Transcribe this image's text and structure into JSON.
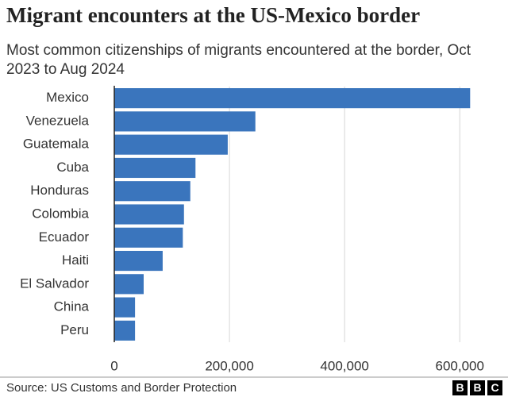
{
  "chart_data": {
    "type": "bar",
    "orientation": "horizontal",
    "title": "Migrant encounters at the US-Mexico border",
    "subtitle": "Most common citizenships of migrants encountered at the border, Oct 2023 to Aug 2024",
    "categories": [
      "Mexico",
      "Venezuela",
      "Guatemala",
      "Cuba",
      "Honduras",
      "Colombia",
      "Ecuador",
      "Haiti",
      "El Salvador",
      "China",
      "Peru"
    ],
    "values": [
      618000,
      245000,
      197000,
      141000,
      132000,
      121000,
      119000,
      84000,
      51000,
      36000,
      36000
    ],
    "color": "#3a75bd",
    "xlim": [
      0,
      630000
    ],
    "xticks": [
      0,
      {
        "value": 200000,
        "label": "200,000"
      },
      {
        "value": 400000,
        "label": "400,000"
      },
      {
        "value": 600000,
        "label": "600,000"
      }
    ],
    "grid": true,
    "source": "Source: US Customs and Border Protection"
  },
  "logo": [
    "B",
    "B",
    "C"
  ]
}
